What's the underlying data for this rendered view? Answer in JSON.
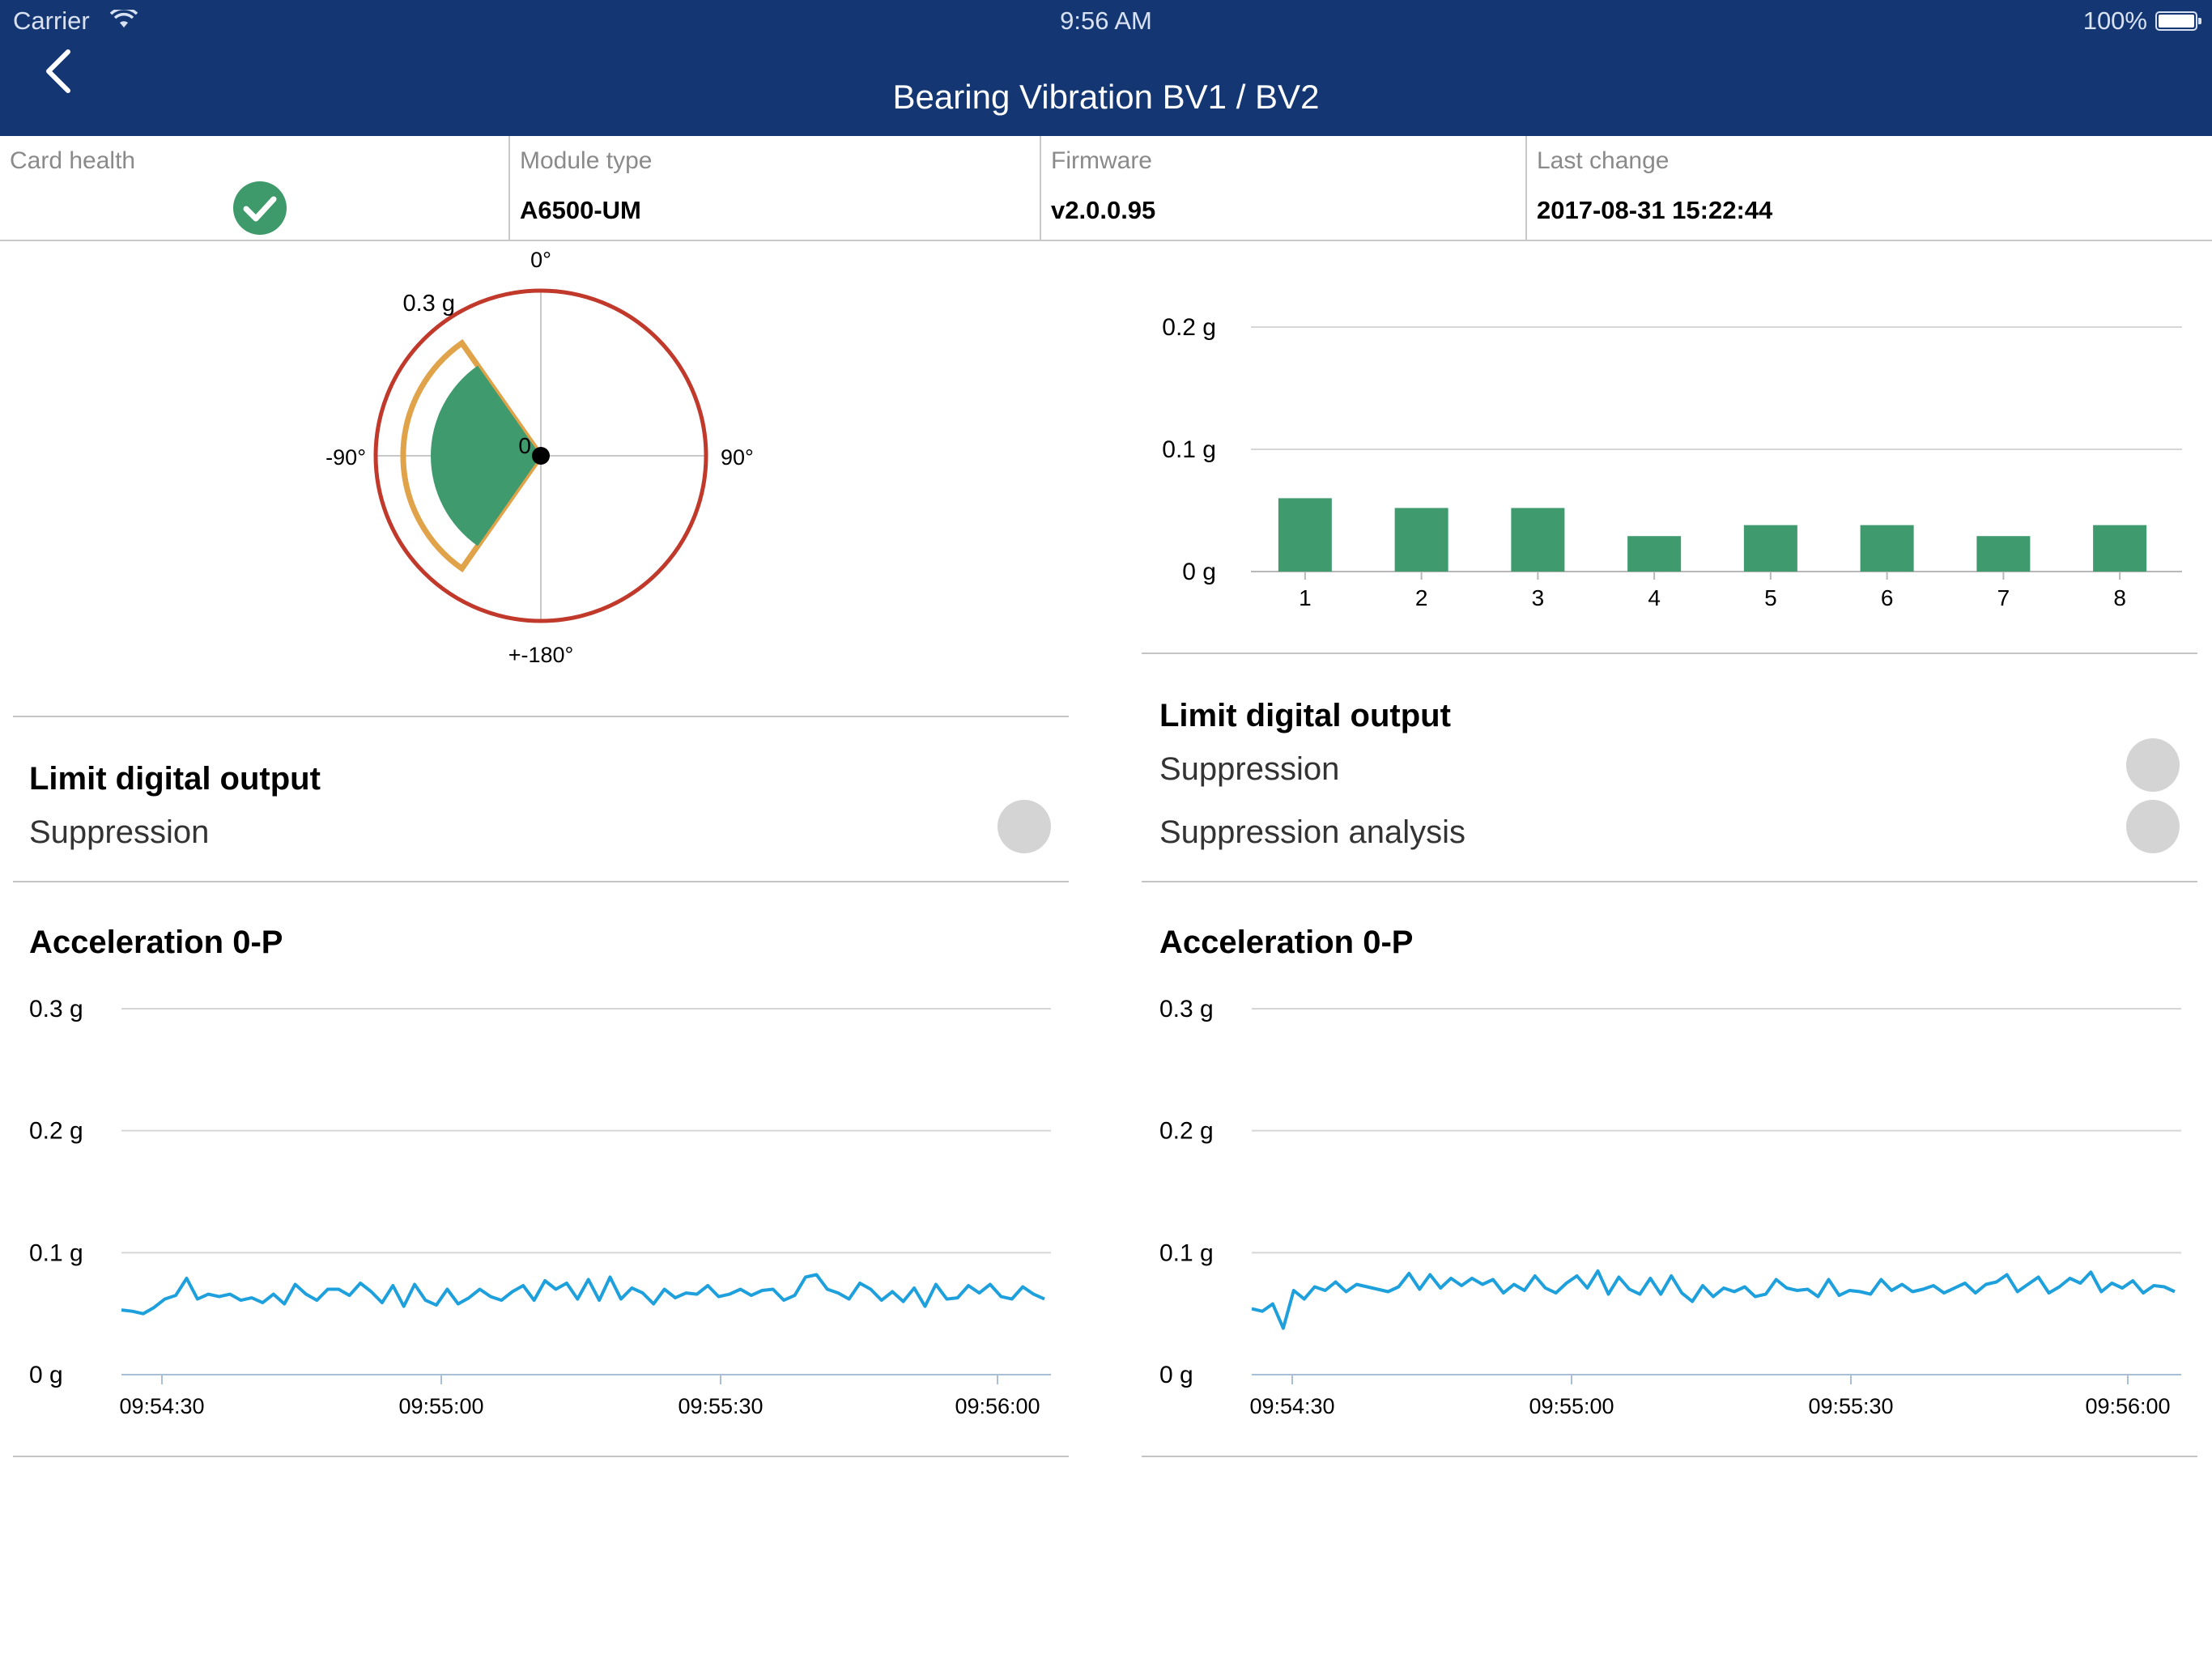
{
  "status_bar": {
    "carrier": "Carrier",
    "time": "9:56 AM",
    "battery": "100%"
  },
  "nav": {
    "title": "Bearing Vibration BV1 / BV2"
  },
  "info": {
    "card_health_label": "Card health",
    "module_type_label": "Module type",
    "module_type_value": "A6500-UM",
    "firmware_label": "Firmware",
    "firmware_value": "v2.0.0.95",
    "last_change_label": "Last change",
    "last_change_value": "2017-08-31 15:22:44"
  },
  "colors": {
    "header": "#143672",
    "ok": "#3e9a6a",
    "alarm_ring": "#c0392b",
    "warn": "#e0a34a",
    "bars": "#3f9a6e",
    "trend": "#1ea0dc"
  },
  "left_panel": {
    "limit_title": "Limit digital output",
    "suppression_label": "Suppression",
    "acceleration_title": "Acceleration 0-P"
  },
  "right_panel": {
    "limit_title": "Limit digital output",
    "suppression_label": "Suppression",
    "suppression_analysis_label": "Suppression analysis",
    "acceleration_title": "Acceleration 0-P"
  },
  "chart_data": [
    {
      "type": "polar",
      "angle_labels": [
        "0°",
        "90°",
        "+-180°",
        "-90°"
      ],
      "radius_label": "0.3 g",
      "center_label": "0",
      "alarm_radius": 0.3,
      "warning_sector": {
        "start_deg": -90,
        "end_deg": -35,
        "radius": 0.25
      },
      "value_sector": {
        "start_deg": -90,
        "end_deg": -35,
        "radius": 0.2
      }
    },
    {
      "type": "bar",
      "categories": [
        "1",
        "2",
        "3",
        "4",
        "5",
        "6",
        "7",
        "8"
      ],
      "values": [
        0.06,
        0.052,
        0.052,
        0.029,
        0.038,
        0.038,
        0.029,
        0.038
      ],
      "yticks": [
        "0 g",
        "0.1 g",
        "0.2 g"
      ],
      "ylim": [
        0,
        0.2
      ]
    },
    {
      "type": "line",
      "title": "Acceleration 0-P",
      "xticks": [
        "09:54:30",
        "09:55:00",
        "09:55:30",
        "09:56:00"
      ],
      "yticks": [
        "0 g",
        "0.1 g",
        "0.2 g",
        "0.3 g"
      ],
      "ylim": [
        0,
        0.3
      ],
      "values": [
        0.053,
        0.052,
        0.05,
        0.055,
        0.062,
        0.065,
        0.079,
        0.062,
        0.066,
        0.064,
        0.066,
        0.061,
        0.063,
        0.059,
        0.066,
        0.058,
        0.074,
        0.066,
        0.061,
        0.07,
        0.07,
        0.065,
        0.075,
        0.068,
        0.059,
        0.073,
        0.056,
        0.074,
        0.061,
        0.057,
        0.07,
        0.058,
        0.063,
        0.07,
        0.064,
        0.061,
        0.068,
        0.073,
        0.061,
        0.077,
        0.07,
        0.075,
        0.062,
        0.078,
        0.061,
        0.08,
        0.062,
        0.071,
        0.067,
        0.058,
        0.07,
        0.063,
        0.067,
        0.066,
        0.073,
        0.064,
        0.066,
        0.07,
        0.065,
        0.069,
        0.07,
        0.061,
        0.065,
        0.08,
        0.082,
        0.07,
        0.067,
        0.062,
        0.075,
        0.07,
        0.061,
        0.068,
        0.06,
        0.071,
        0.056,
        0.074,
        0.062,
        0.063,
        0.073,
        0.067,
        0.074,
        0.064,
        0.062,
        0.072,
        0.066,
        0.062
      ]
    },
    {
      "type": "line",
      "title": "Acceleration 0-P",
      "xticks": [
        "09:54:30",
        "09:55:00",
        "09:55:30",
        "09:56:00"
      ],
      "yticks": [
        "0 g",
        "0.1 g",
        "0.2 g",
        "0.3 g"
      ],
      "ylim": [
        0,
        0.3
      ],
      "values": [
        0.054,
        0.052,
        0.058,
        0.038,
        0.069,
        0.062,
        0.072,
        0.069,
        0.076,
        0.068,
        0.074,
        0.072,
        0.07,
        0.068,
        0.072,
        0.083,
        0.07,
        0.082,
        0.071,
        0.079,
        0.073,
        0.079,
        0.074,
        0.078,
        0.067,
        0.074,
        0.069,
        0.081,
        0.071,
        0.067,
        0.075,
        0.081,
        0.071,
        0.085,
        0.066,
        0.08,
        0.07,
        0.066,
        0.079,
        0.066,
        0.081,
        0.067,
        0.06,
        0.073,
        0.064,
        0.071,
        0.068,
        0.072,
        0.064,
        0.066,
        0.078,
        0.071,
        0.069,
        0.07,
        0.064,
        0.078,
        0.065,
        0.069,
        0.068,
        0.066,
        0.078,
        0.069,
        0.074,
        0.068,
        0.07,
        0.073,
        0.067,
        0.071,
        0.075,
        0.067,
        0.074,
        0.076,
        0.082,
        0.068,
        0.074,
        0.08,
        0.067,
        0.072,
        0.079,
        0.075,
        0.084,
        0.068,
        0.075,
        0.071,
        0.077,
        0.067,
        0.073,
        0.072,
        0.068
      ]
    }
  ]
}
